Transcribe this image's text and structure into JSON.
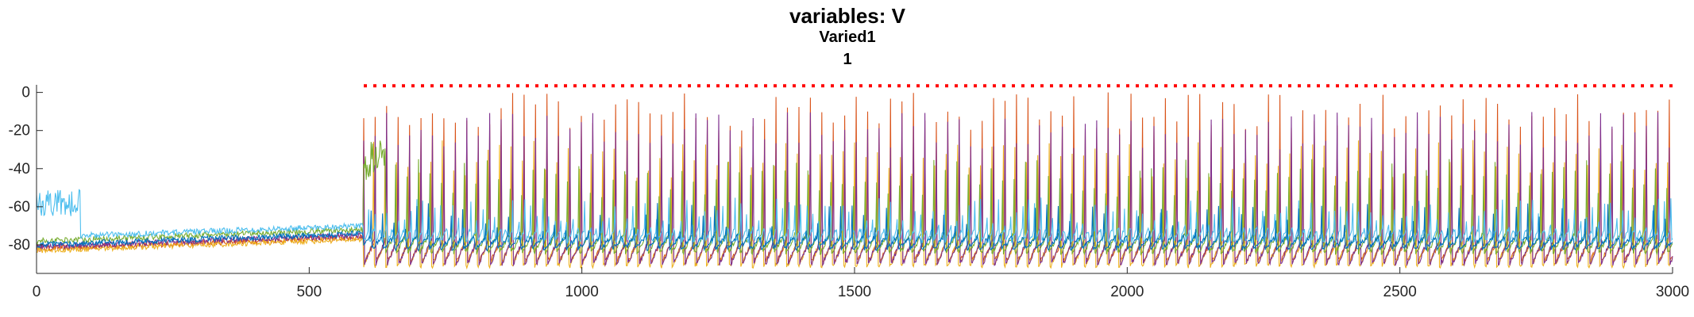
{
  "chart_data": {
    "type": "line",
    "title": "variables: V",
    "subtitle_lines": [
      "Varied1",
      "1"
    ],
    "xlabel": "",
    "ylabel": "",
    "xlim": [
      0,
      3000
    ],
    "ylim": [
      -95,
      4
    ],
    "x_ticks": [
      0,
      500,
      1000,
      1500,
      2000,
      2500,
      3000
    ],
    "x_tick_labels": [
      "0",
      "500",
      "1000",
      "1500",
      "2000",
      "2500",
      "3000"
    ],
    "y_ticks": [
      0,
      -20,
      -40,
      -60,
      -80
    ],
    "y_tick_labels": [
      "0",
      "-20",
      "-40",
      "-60",
      "-80"
    ],
    "grid": false,
    "legend": "none",
    "stimulus_marker": {
      "y": 3.5,
      "x_start": 600,
      "x_end": 3000,
      "color": "#ff0000",
      "style": "dotted"
    },
    "series": [
      {
        "color": "#d95319",
        "baseline": -78,
        "trough": -88,
        "spike_top": -10,
        "spike_period": 21,
        "phase": 0
      },
      {
        "color": "#edb120",
        "baseline": -79,
        "trough": -91,
        "spike_top": -35,
        "spike_period": 21,
        "phase": 3
      },
      {
        "color": "#7e2f8e",
        "baseline": -77,
        "trough": -90,
        "spike_top": -20,
        "spike_period": 21,
        "phase": 1
      },
      {
        "color": "#77ac30",
        "baseline": -74,
        "trough": -84,
        "spike_top": -45,
        "spike_period": 21,
        "phase": 5
      },
      {
        "color": "#4dbeee",
        "baseline": -72,
        "trough": -78,
        "spike_top": -65,
        "spike_period": 11,
        "phase": 2
      },
      {
        "color": "#0072bd",
        "baseline": -76,
        "trough": -82,
        "spike_top": -68,
        "spike_period": 21,
        "phase": 8
      }
    ]
  }
}
